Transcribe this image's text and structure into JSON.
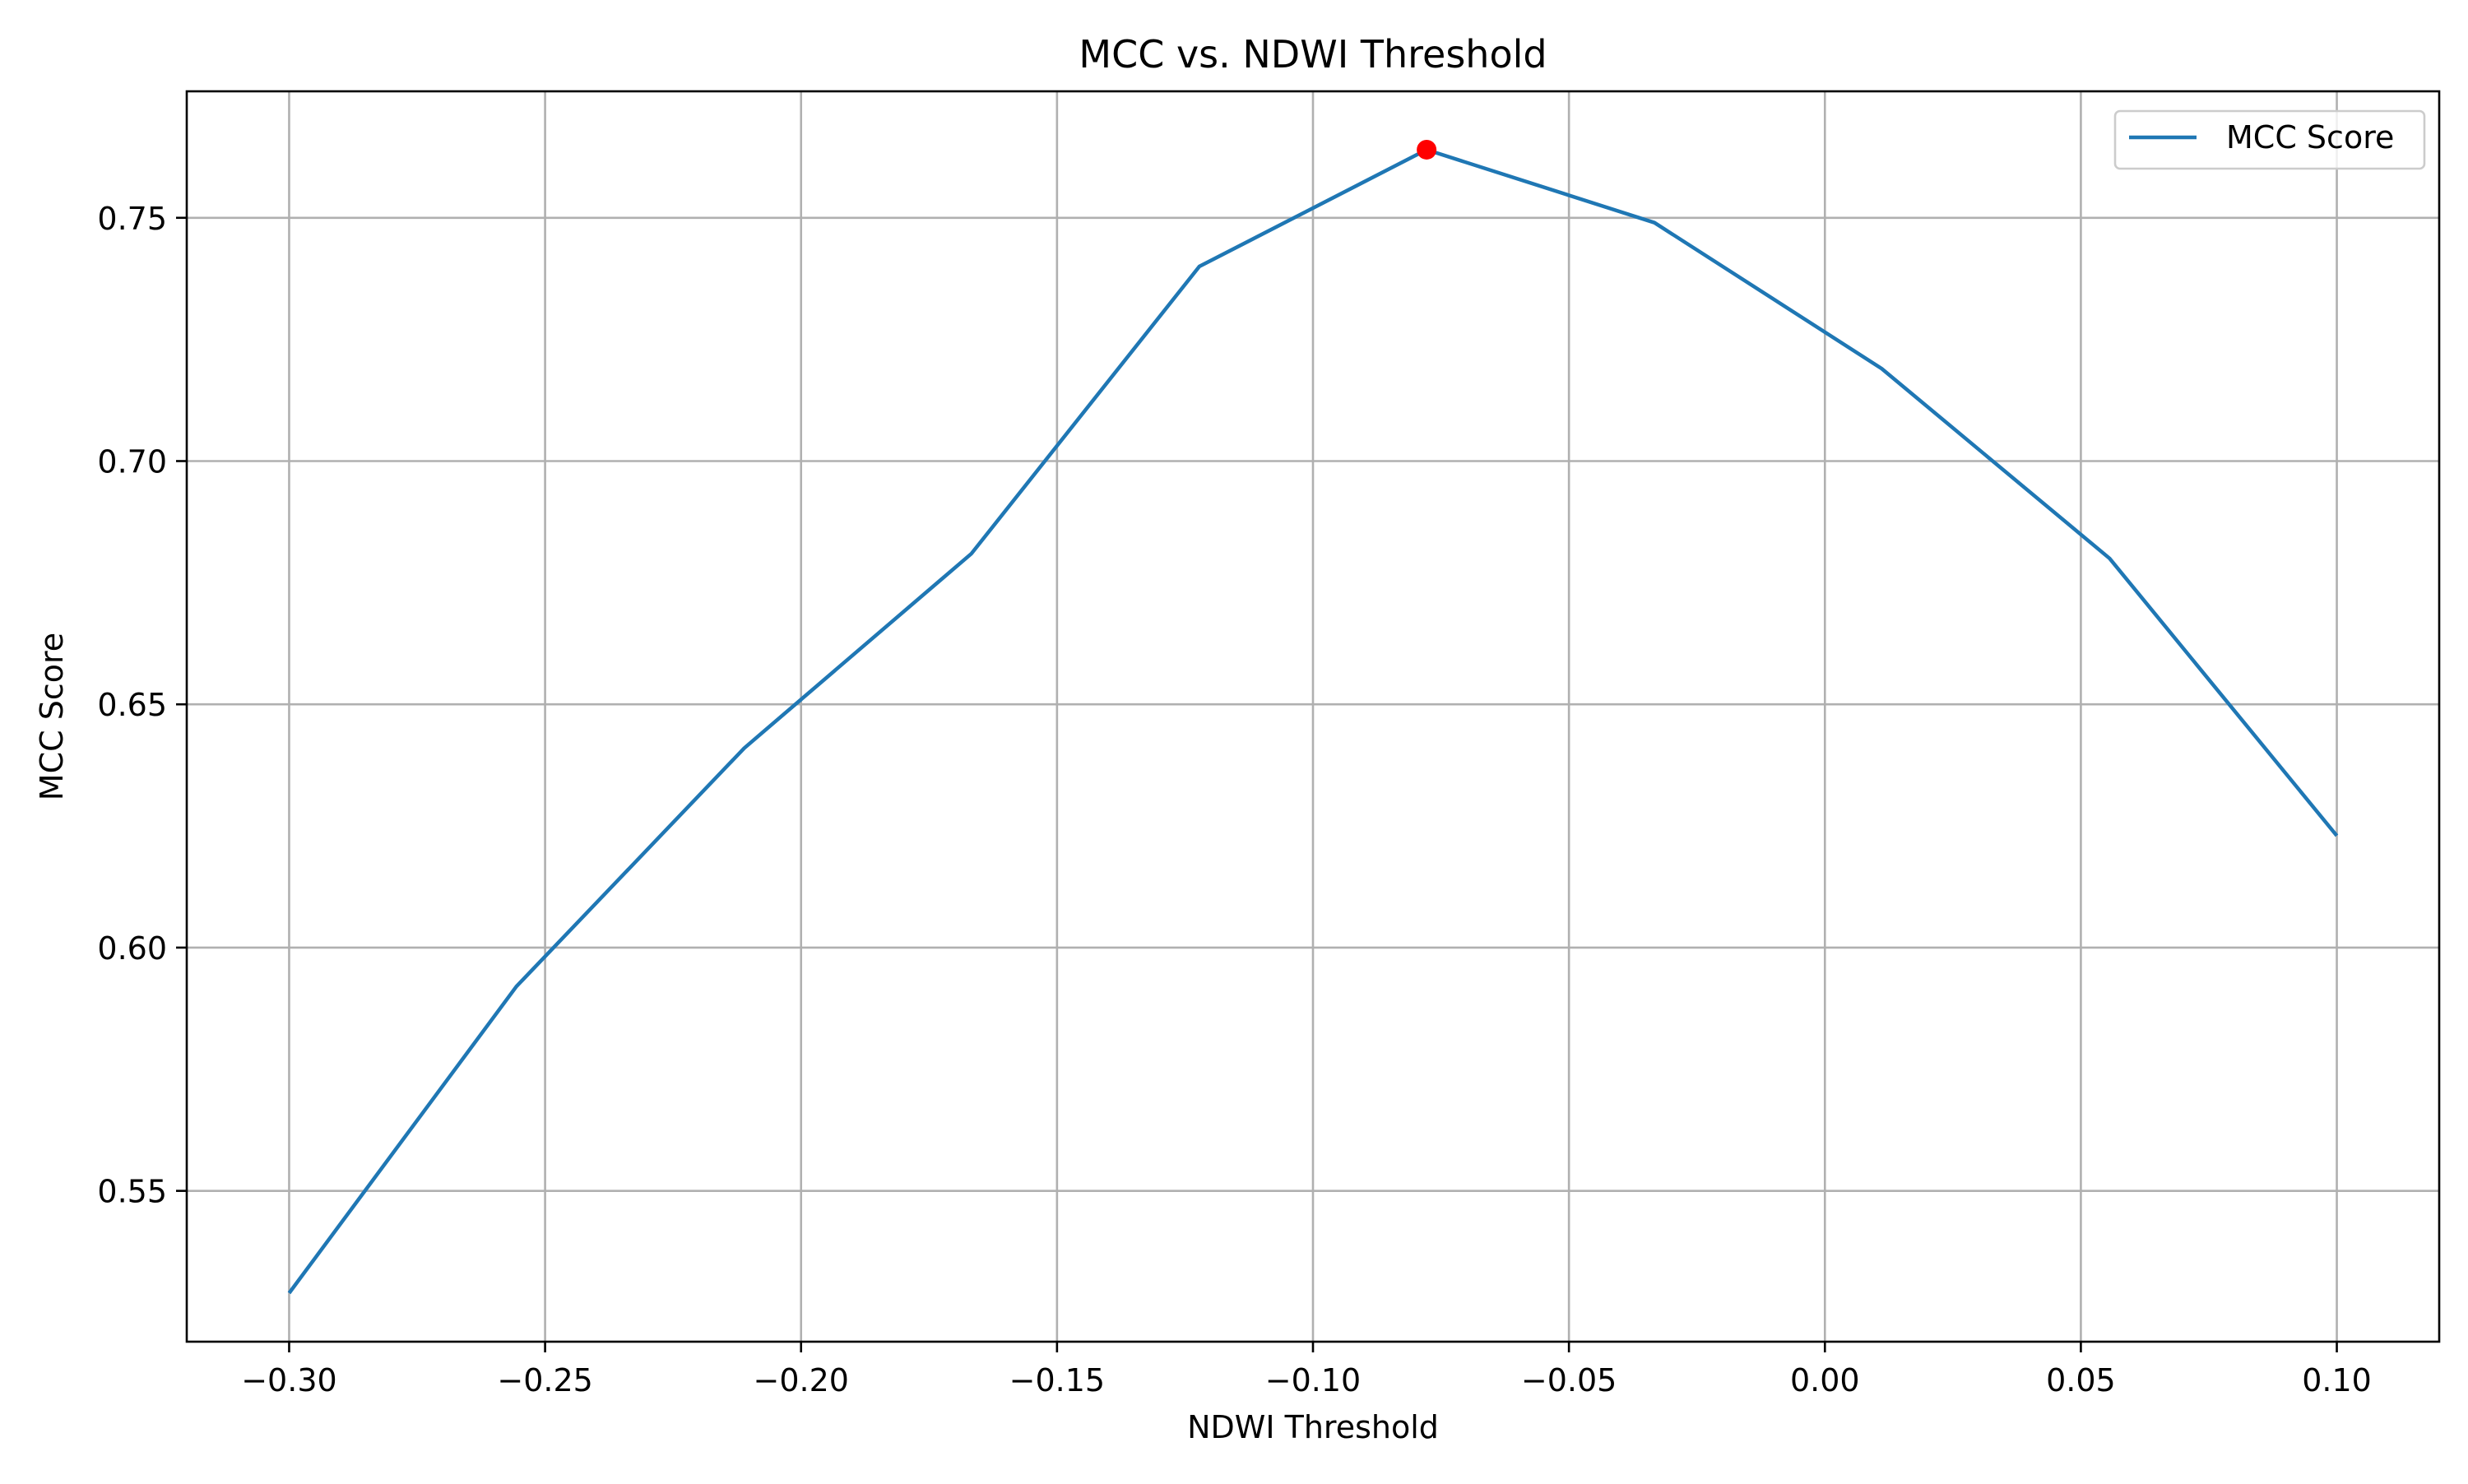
{
  "chart_data": {
    "type": "line",
    "title": "MCC vs. NDWI Threshold",
    "xlabel": "NDWI Threshold",
    "ylabel": "MCC Score",
    "xlim": [
      -0.32,
      0.12
    ],
    "ylim": [
      0.519,
      0.776
    ],
    "grid": true,
    "legend_position": "top-right",
    "x_ticks": [
      -0.3,
      -0.25,
      -0.2,
      -0.15,
      -0.1,
      -0.05,
      0.0,
      0.05,
      0.1
    ],
    "x_tick_labels": [
      "−0.30",
      "−0.25",
      "−0.20",
      "−0.15",
      "−0.10",
      "−0.05",
      "0.00",
      "0.05",
      "0.10"
    ],
    "y_ticks": [
      0.55,
      0.6,
      0.65,
      0.7,
      0.75
    ],
    "y_tick_labels": [
      "0.55",
      "0.60",
      "0.65",
      "0.70",
      "0.75"
    ],
    "series": [
      {
        "name": "MCC Score",
        "color": "#1f77b4",
        "x": [
          -0.3,
          -0.2556,
          -0.2111,
          -0.1667,
          -0.1222,
          -0.0778,
          -0.0333,
          0.0111,
          0.0556,
          0.1
        ],
        "y": [
          0.529,
          0.592,
          0.641,
          0.681,
          0.74,
          0.764,
          0.749,
          0.719,
          0.68,
          0.623
        ]
      }
    ],
    "highlight_point": {
      "x": -0.0778,
      "y": 0.764,
      "color": "#ff0000"
    }
  }
}
